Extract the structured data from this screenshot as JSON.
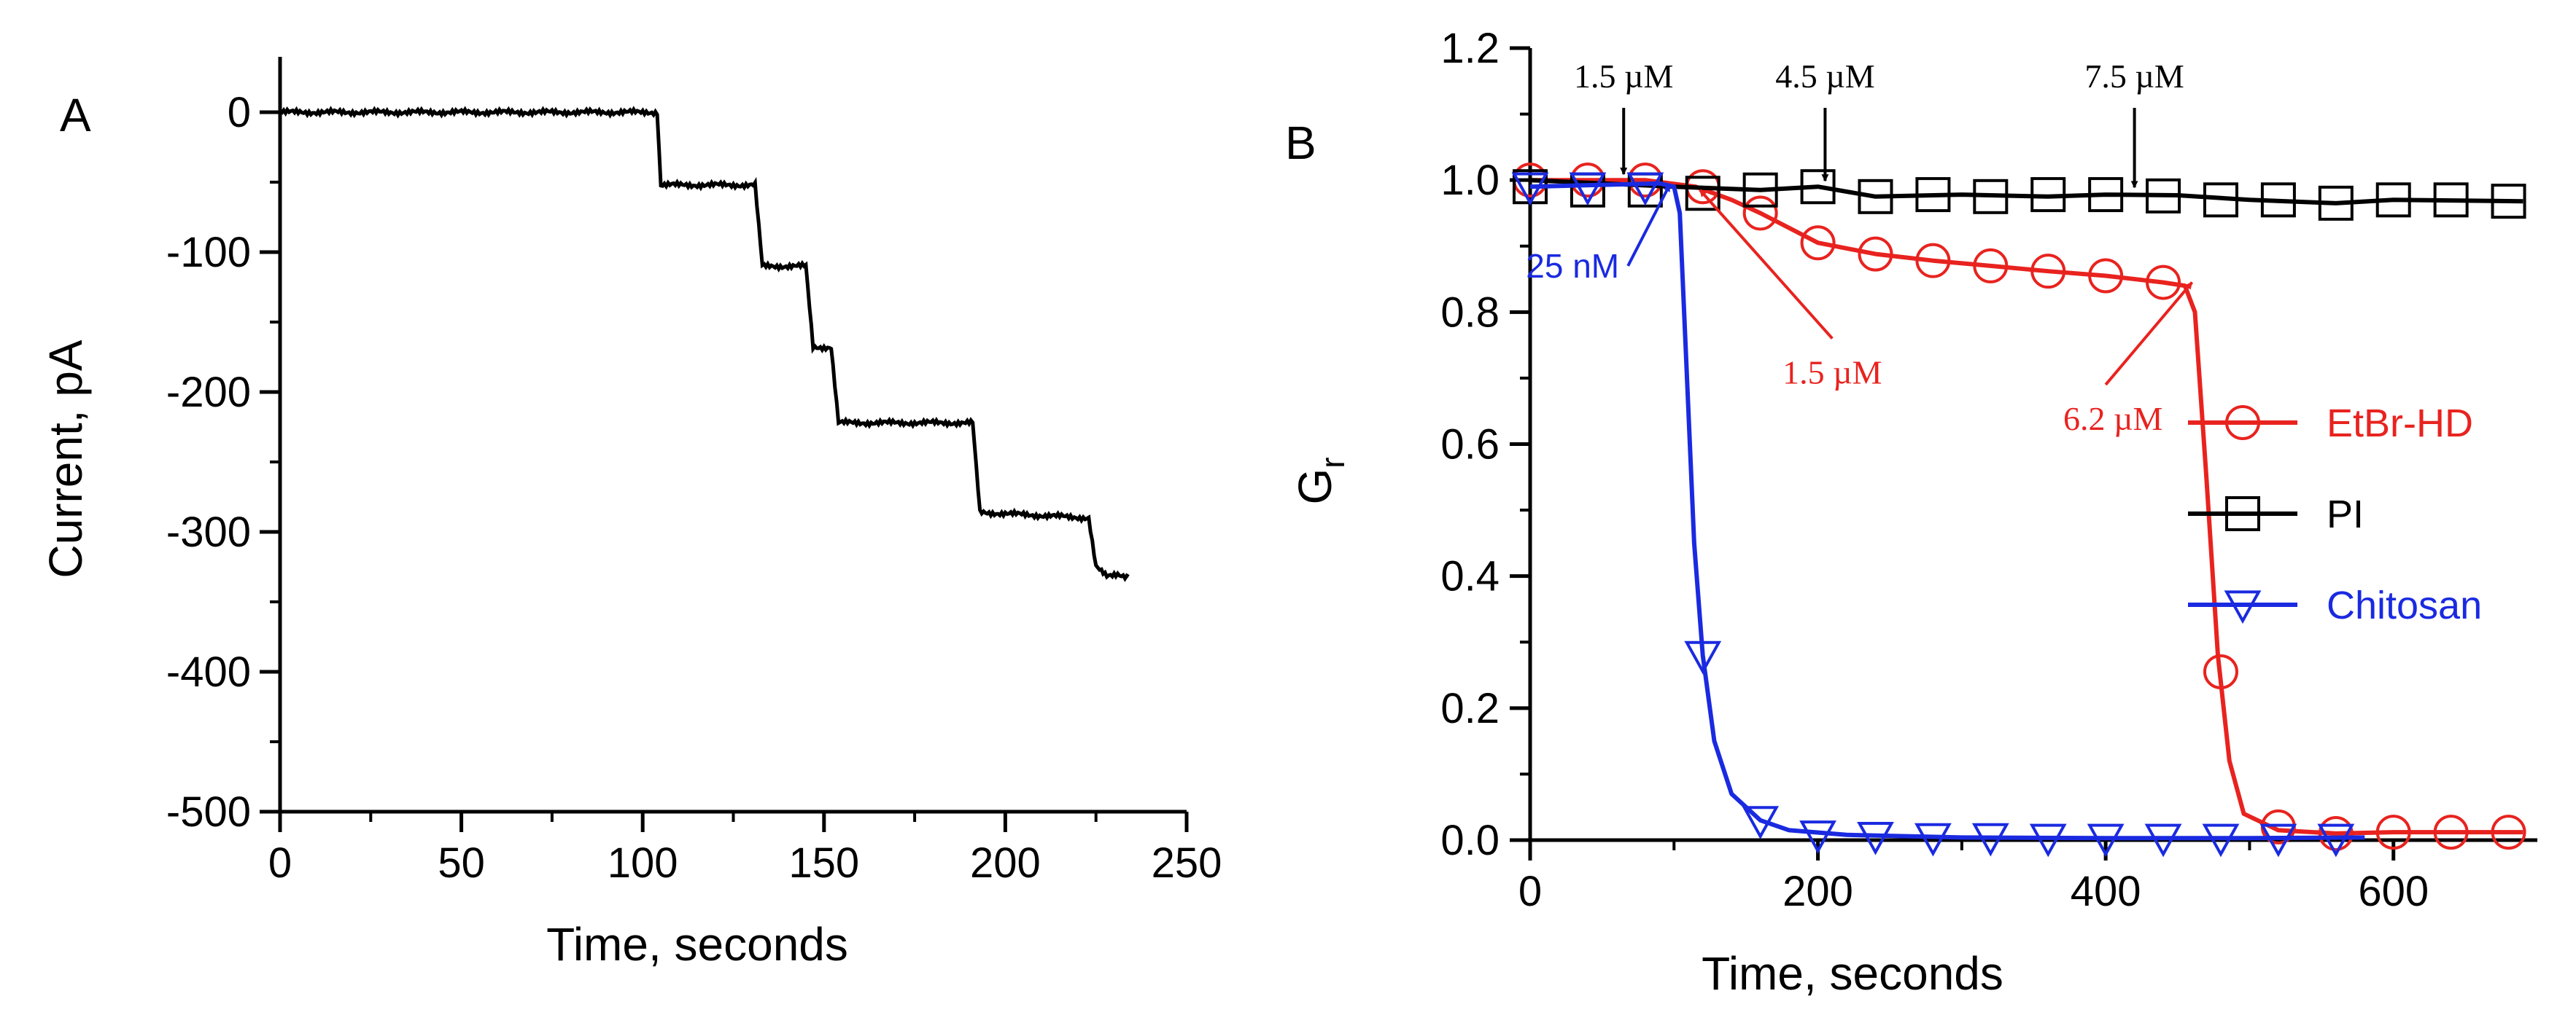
{
  "chart_data": [
    {
      "type": "line",
      "panel_label": "A",
      "xlabel": "Time, seconds",
      "ylabel": "Current, pA",
      "xlim": [
        0,
        250
      ],
      "ylim": [
        -500,
        50
      ],
      "x_ticks": [
        "0",
        "50",
        "100",
        "150",
        "200",
        "250"
      ],
      "y_ticks": [
        "0",
        "-100",
        "-200",
        "-300",
        "-400",
        "-500"
      ],
      "series": [
        {
          "color": "#000000",
          "points": [
            [
              0,
              0
            ],
            [
              104,
              0
            ],
            [
              105,
              -52
            ],
            [
              131,
              -52
            ],
            [
              133,
              -110
            ],
            [
              145,
              -110
            ],
            [
              147,
              -168
            ],
            [
              152,
              -168
            ],
            [
              154,
              -222
            ],
            [
              191,
              -222
            ],
            [
              193,
              -286
            ],
            [
              223,
              -290
            ],
            [
              225,
              -325
            ],
            [
              228,
              -332
            ],
            [
              231,
              -330
            ],
            [
              234,
              -332
            ]
          ]
        }
      ]
    },
    {
      "type": "line",
      "panel_label": "B",
      "xlabel": "Time, seconds",
      "ylabel": "G",
      "ylabel_sub": "r",
      "xlim": [
        0,
        700
      ],
      "ylim": [
        0,
        1.2
      ],
      "x_ticks": [
        "0",
        "200",
        "400",
        "600"
      ],
      "y_ticks": [
        "0.0",
        "0.2",
        "0.4",
        "0.6",
        "0.8",
        "1.0",
        "1.2"
      ],
      "series": [
        {
          "name": "EtBr-HD",
          "color": "#e8231f",
          "marker": "circle",
          "points": [
            [
              0,
              1.0
            ],
            [
              80,
              1.0
            ],
            [
              115,
              0.99
            ],
            [
              140,
              0.97
            ],
            [
              160,
              0.95
            ],
            [
              200,
              0.905
            ],
            [
              240,
              0.888
            ],
            [
              280,
              0.878
            ],
            [
              320,
              0.87
            ],
            [
              360,
              0.862
            ],
            [
              400,
              0.855
            ],
            [
              440,
              0.845
            ],
            [
              455,
              0.84
            ],
            [
              462,
              0.8
            ],
            [
              470,
              0.55
            ],
            [
              478,
              0.28
            ],
            [
              486,
              0.12
            ],
            [
              496,
              0.04
            ],
            [
              520,
              0.015
            ],
            [
              560,
              0.01
            ],
            [
              600,
              0.012
            ],
            [
              640,
              0.012
            ],
            [
              690,
              0.012
            ]
          ],
          "marker_points": [
            [
              0,
              1.0
            ],
            [
              40,
              1.0
            ],
            [
              80,
              1.0
            ],
            [
              120,
              0.99
            ],
            [
              160,
              0.95
            ],
            [
              200,
              0.905
            ],
            [
              240,
              0.888
            ],
            [
              280,
              0.878
            ],
            [
              320,
              0.87
            ],
            [
              360,
              0.862
            ],
            [
              400,
              0.855
            ],
            [
              440,
              0.845
            ],
            [
              480,
              0.255
            ],
            [
              520,
              0.02
            ],
            [
              560,
              0.01
            ],
            [
              600,
              0.012
            ],
            [
              640,
              0.012
            ],
            [
              680,
              0.012
            ]
          ]
        },
        {
          "name": "PI",
          "color": "#000000",
          "marker": "square",
          "points": [
            [
              0,
              1.0
            ],
            [
              100,
              0.99
            ],
            [
              160,
              0.985
            ],
            [
              200,
              0.99
            ],
            [
              240,
              0.975
            ],
            [
              300,
              0.978
            ],
            [
              360,
              0.975
            ],
            [
              400,
              0.978
            ],
            [
              450,
              0.977
            ],
            [
              500,
              0.97
            ],
            [
              560,
              0.965
            ],
            [
              600,
              0.97
            ],
            [
              690,
              0.968
            ]
          ],
          "marker_points": [
            [
              0,
              0.99
            ],
            [
              40,
              0.985
            ],
            [
              80,
              0.985
            ],
            [
              120,
              0.98
            ],
            [
              160,
              0.985
            ],
            [
              200,
              0.99
            ],
            [
              240,
              0.975
            ],
            [
              280,
              0.978
            ],
            [
              320,
              0.975
            ],
            [
              360,
              0.978
            ],
            [
              400,
              0.978
            ],
            [
              440,
              0.976
            ],
            [
              480,
              0.97
            ],
            [
              520,
              0.97
            ],
            [
              560,
              0.965
            ],
            [
              600,
              0.97
            ],
            [
              640,
              0.97
            ],
            [
              680,
              0.968
            ]
          ]
        },
        {
          "name": "Chitosan",
          "color": "#1a2ae0",
          "marker": "triangle-down",
          "points": [
            [
              0,
              0.99
            ],
            [
              90,
              0.995
            ],
            [
              100,
              0.99
            ],
            [
              104,
              0.95
            ],
            [
              108,
              0.75
            ],
            [
              114,
              0.45
            ],
            [
              120,
              0.28
            ],
            [
              128,
              0.15
            ],
            [
              140,
              0.07
            ],
            [
              160,
              0.03
            ],
            [
              180,
              0.015
            ],
            [
              220,
              0.008
            ],
            [
              300,
              0.004
            ],
            [
              400,
              0.003
            ],
            [
              500,
              0.003
            ],
            [
              580,
              0.004
            ]
          ],
          "marker_points": [
            [
              0,
              0.99
            ],
            [
              40,
              0.99
            ],
            [
              80,
              0.99
            ],
            [
              120,
              0.28
            ],
            [
              160,
              0.03
            ],
            [
              200,
              0.008
            ],
            [
              240,
              0.006
            ],
            [
              280,
              0.004
            ],
            [
              320,
              0.004
            ],
            [
              360,
              0.003
            ],
            [
              400,
              0.003
            ],
            [
              440,
              0.003
            ],
            [
              480,
              0.003
            ],
            [
              520,
              0.003
            ],
            [
              560,
              0.003
            ]
          ]
        }
      ],
      "annotations": [
        {
          "text": "1.5 µM",
          "color": "#000000",
          "x": 65,
          "y_arrow": 1.0,
          "style": "top"
        },
        {
          "text": "4.5 µM",
          "color": "#000000",
          "x": 205,
          "y_arrow": 0.99,
          "style": "top"
        },
        {
          "text": "7.5 µM",
          "color": "#000000",
          "x": 420,
          "y_arrow": 0.98,
          "style": "top"
        },
        {
          "text": "25 nM",
          "color": "#1a2ae0",
          "tip": [
            97,
            0.993
          ],
          "tail": [
            68,
            0.87
          ],
          "style": "side"
        },
        {
          "text": "1.5 µM",
          "color": "#e8231f",
          "tip": [
            118,
            0.985
          ],
          "tail": [
            210,
            0.76
          ],
          "style": "side"
        },
        {
          "text": "6.2 µM",
          "color": "#e8231f",
          "tip": [
            460,
            0.845
          ],
          "tail": [
            400,
            0.69
          ],
          "style": "side"
        }
      ]
    }
  ]
}
